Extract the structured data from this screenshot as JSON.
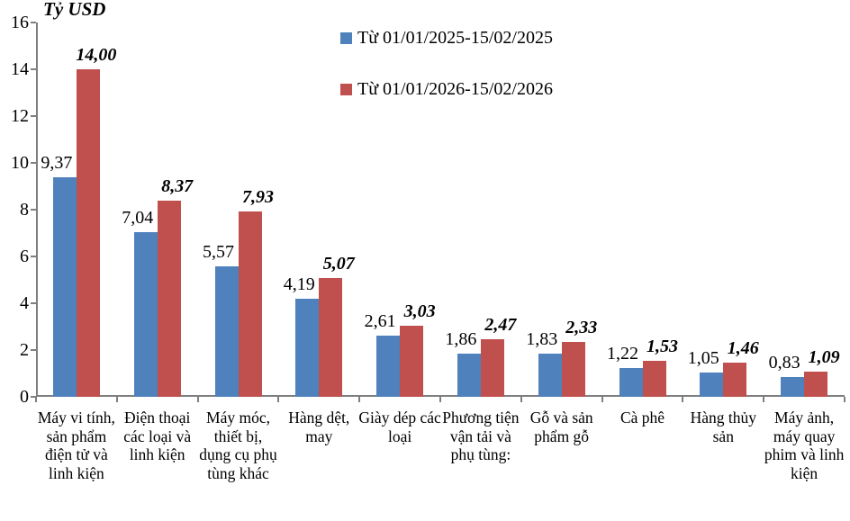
{
  "title": "Tỷ USD",
  "chart_data": {
    "type": "bar",
    "title": "Tỷ USD",
    "ylabel": "Tỷ USD",
    "xlabel": "",
    "ylim": [
      0,
      16
    ],
    "y_ticks": [
      0,
      2,
      4,
      6,
      8,
      10,
      12,
      14,
      16
    ],
    "grid": false,
    "legend_position": "top-center-inside",
    "axis_color": "#7f7f7f",
    "categories": [
      "Máy vi tính, sản phẩm điện tử và linh kiện",
      "Điện thoại các loại và linh kiện",
      "Máy móc, thiết bị, dụng cụ phụ tùng khác",
      "Hàng dệt, may",
      "Giày dép các loại",
      "Phương tiện vận tải và phụ tùng:",
      "Gỗ và sản phẩm gỗ",
      "Cà phê",
      "Hàng thủy sản",
      "Máy ảnh, máy quay phim và linh kiện"
    ],
    "series": [
      {
        "name": "Từ 01/01/2025-15/02/2025",
        "color": "#4F81BD",
        "values": [
          9.37,
          7.04,
          5.57,
          4.19,
          2.61,
          1.86,
          1.83,
          1.22,
          1.05,
          0.83
        ],
        "value_labels": [
          "9,37",
          "7,04",
          "5,57",
          "4,19",
          "2,61",
          "1,86",
          "1,83",
          "1,22",
          "1,05",
          "0,83"
        ]
      },
      {
        "name": "Từ 01/01/2026-15/02/2026",
        "color": "#C0504D",
        "values": [
          14.0,
          8.37,
          7.93,
          5.07,
          3.03,
          2.47,
          2.33,
          1.53,
          1.46,
          1.09
        ],
        "value_labels": [
          "14,00",
          "8,37",
          "7,93",
          "5,07",
          "3,03",
          "2,47",
          "2,33",
          "1,53",
          "1,46",
          "1,09"
        ]
      }
    ]
  }
}
